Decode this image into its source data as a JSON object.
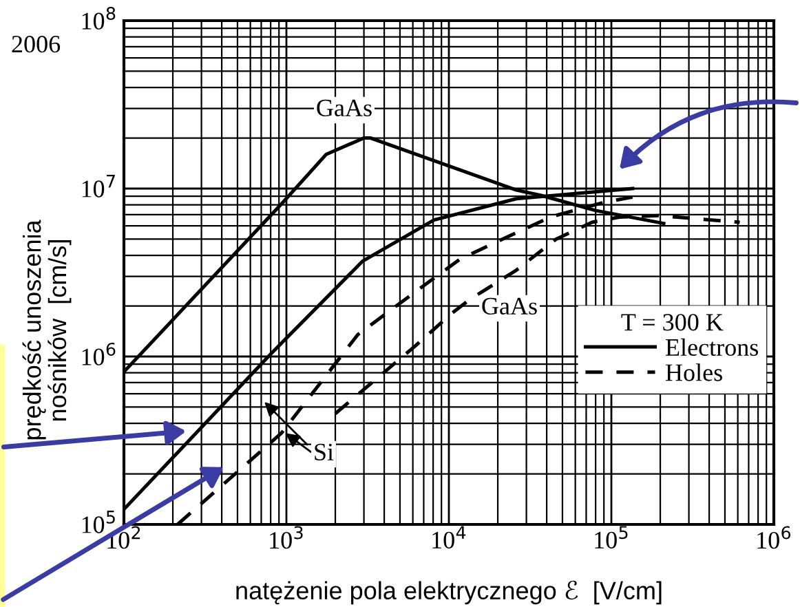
{
  "chart_data": {
    "type": "line",
    "xlabel": "natężenie pola elektrycznego ℰ  [V/cm]",
    "ylabel": "prędkość unoszenia\nnośników  [cm/s]",
    "legend_title": "T = 300 K",
    "log": "xy",
    "grid": true,
    "legend": "bottom right",
    "marker": "none",
    "xlim": [
      100,
      1000000
    ],
    "ylim": [
      100000,
      100000000
    ],
    "xticks": [
      {
        "value": 100,
        "label": "10$^{2}$"
      },
      {
        "value": 1000,
        "label": "10$^{3}$"
      },
      {
        "value": 10000,
        "label": "10$^{4}$"
      },
      {
        "value": 100000,
        "label": "10$^{5}$"
      },
      {
        "value": 1000000,
        "label": "10$^{6}$"
      }
    ],
    "yticks": [
      {
        "value": 100000,
        "label": "10$^{5}$"
      },
      {
        "value": 1000000,
        "label": "10$^{6}$"
      },
      {
        "value": 10000000,
        "label": "10$^{7}$"
      },
      {
        "value": 100000000,
        "label": "10$^{8}$"
      }
    ],
    "series": [
      {
        "name": "Electrons",
        "color": "#000000",
        "line_style": "solid",
        "x": [
          100,
          933,
          1760,
          3000,
          3300,
          26000,
          37000,
          80000,
          210000
        ],
        "values": [
          810000,
          8100000,
          16000000,
          20000000,
          20000000,
          9800000,
          9100000,
          7400000,
          6200000
        ]
      },
      {
        "color": "#000000",
        "line_style": "solid",
        "x": [
          100,
          813,
          2950,
          8100,
          26000,
          135000
        ],
        "values": [
          123000,
          1050000,
          3700000,
          6500000,
          8700000,
          10000000
        ]
      },
      {
        "name": "Holes",
        "color": "#000000",
        "line_style": "dashed",
        "x": [
          214,
          933,
          2750,
          6300,
          11700,
          22400,
          42700,
          91000,
          135000
        ],
        "values": [
          100000,
          350000,
          1350000,
          2450000,
          3800000,
          5100000,
          6800000,
          8300000,
          8900000
        ]
      },
      {
        "color": "#000000",
        "line_style": "dashed",
        "x": [
          2000,
          6300,
          10500,
          13500,
          25700,
          45700,
          76000,
          112000,
          195000,
          617000
        ],
        "values": [
          457000,
          1170000,
          1820000,
          2190000,
          3240000,
          5000000,
          6300000,
          6760000,
          6900000,
          6300000
        ]
      }
    ],
    "annotations": [
      "2006",
      "GaAs",
      "GaAs",
      "Si"
    ]
  }
}
